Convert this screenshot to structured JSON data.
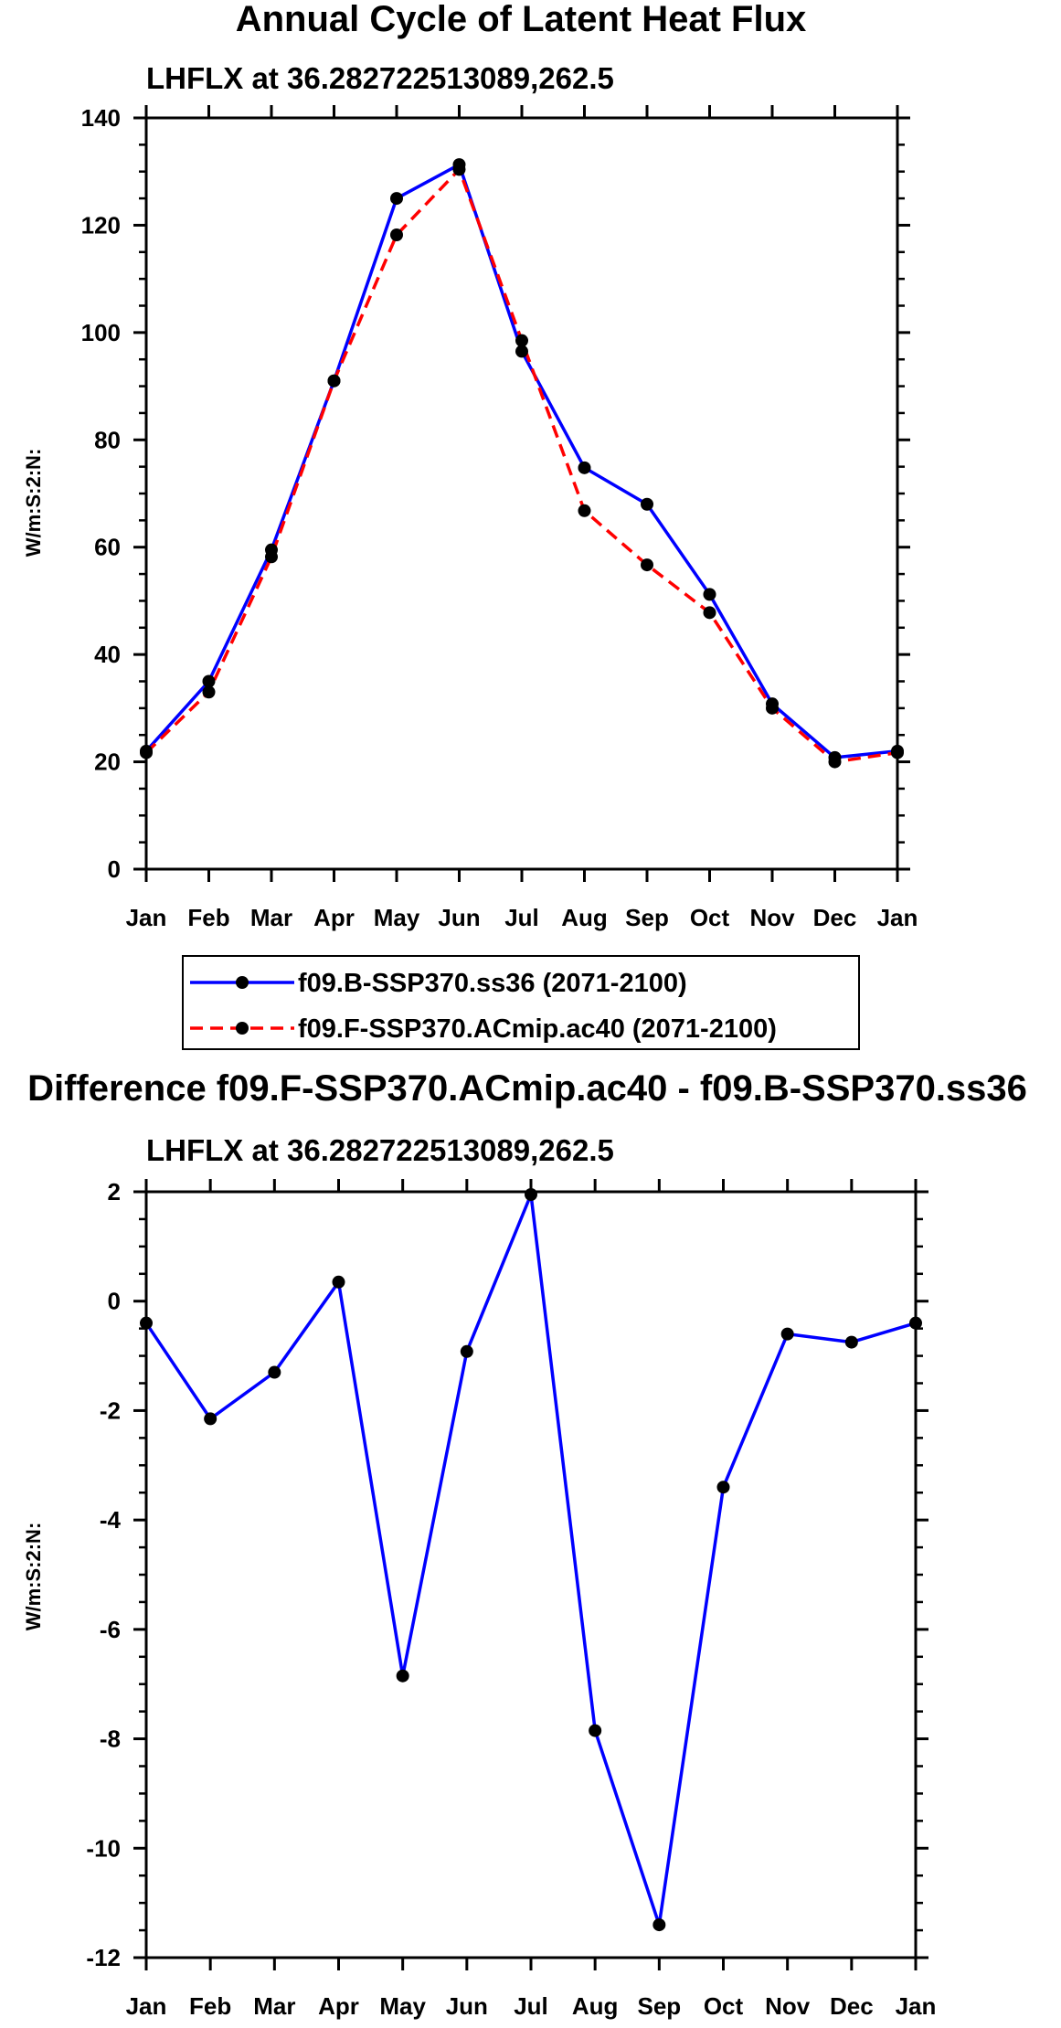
{
  "chart_data": [
    {
      "type": "line",
      "title": "Annual Cycle of Latent Heat Flux",
      "subtitle": "LHFLX at 36.282722513089,262.5",
      "ylabel": "W/m:S:2:N:",
      "xlabel": "",
      "ylim": [
        0,
        140
      ],
      "yticks": [
        0,
        20,
        40,
        60,
        80,
        100,
        120,
        140
      ],
      "categories": [
        "Jan",
        "Feb",
        "Mar",
        "Apr",
        "May",
        "Jun",
        "Jul",
        "Aug",
        "Sep",
        "Oct",
        "Nov",
        "Dec",
        "Jan"
      ],
      "series": [
        {
          "name": "f09.B-SSP370.ss36 (2071-2100)",
          "color": "#0000ff",
          "dash": "solid",
          "values": [
            22,
            35,
            59.5,
            91,
            125,
            131.3,
            96.5,
            74.8,
            68,
            51.2,
            30.8,
            20.8,
            22
          ]
        },
        {
          "name": "f09.F-SSP370.ACmip.ac40 (2071-2100)",
          "color": "#ff0000",
          "dash": "dashed",
          "values": [
            21.7,
            33,
            58.2,
            91,
            118.2,
            130.4,
            98.5,
            66.8,
            56.7,
            47.8,
            30,
            20,
            21.7
          ]
        }
      ],
      "legend": "bottom"
    },
    {
      "type": "line",
      "title": "Difference f09.F-SSP370.ACmip.ac40 - f09.B-SSP370.ss36",
      "subtitle": "LHFLX at 36.282722513089,262.5",
      "ylabel": "W/m:S:2:N:",
      "xlabel": "",
      "ylim": [
        -12,
        2
      ],
      "yticks": [
        -12,
        -10,
        -8,
        -6,
        -4,
        -2,
        0,
        2
      ],
      "categories": [
        "Jan",
        "Feb",
        "Mar",
        "Apr",
        "May",
        "Jun",
        "Jul",
        "Aug",
        "Sep",
        "Oct",
        "Nov",
        "Dec",
        "Jan"
      ],
      "series": [
        {
          "name": "Difference",
          "color": "#0000ff",
          "dash": "solid",
          "values": [
            -0.4,
            -2.15,
            -1.3,
            0.35,
            -6.85,
            -0.92,
            1.95,
            -7.85,
            -11.4,
            -3.4,
            -0.6,
            -0.75,
            -0.4
          ]
        }
      ]
    }
  ]
}
